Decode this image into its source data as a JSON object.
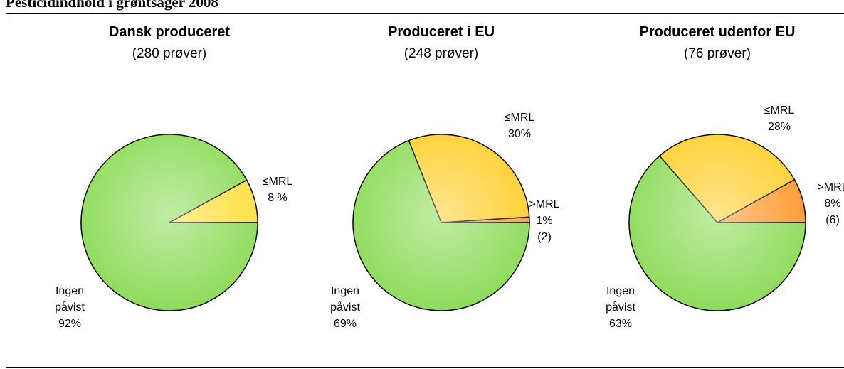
{
  "title": "Pesticidindhold i grøntsager 2008",
  "chart_data": [
    {
      "type": "pie",
      "title": "Dansk produceret",
      "subtitle": "(280 prøver)",
      "categories": [
        "≤MRL",
        "Ingen påvist"
      ],
      "values": [
        8,
        92
      ],
      "value_labels": [
        "8 %",
        "92%"
      ],
      "colors": [
        "#ffe040",
        "#8fdc5c"
      ]
    },
    {
      "type": "pie",
      "title": "Produceret i EU",
      "subtitle": "(248 prøver)",
      "categories": [
        ">MRL",
        "≤MRL",
        "Ingen påvist"
      ],
      "values": [
        1,
        30,
        69
      ],
      "value_labels": [
        "1%",
        "30%",
        "69%"
      ],
      "colors": [
        "#ffa040",
        "#ffd030",
        "#8fdc5c"
      ],
      "annotation": "(2)"
    },
    {
      "type": "pie",
      "title": "Produceret udenfor EU",
      "subtitle": "(76 prøver)",
      "categories": [
        ">MRL",
        "≤MRL",
        "Ingen påvist"
      ],
      "values": [
        8,
        28,
        63
      ],
      "value_labels": [
        "8%",
        "28%",
        "63%"
      ],
      "colors": [
        "#ff9a30",
        "#ffd030",
        "#8fdc5c"
      ],
      "annotation": "(6)"
    }
  ]
}
